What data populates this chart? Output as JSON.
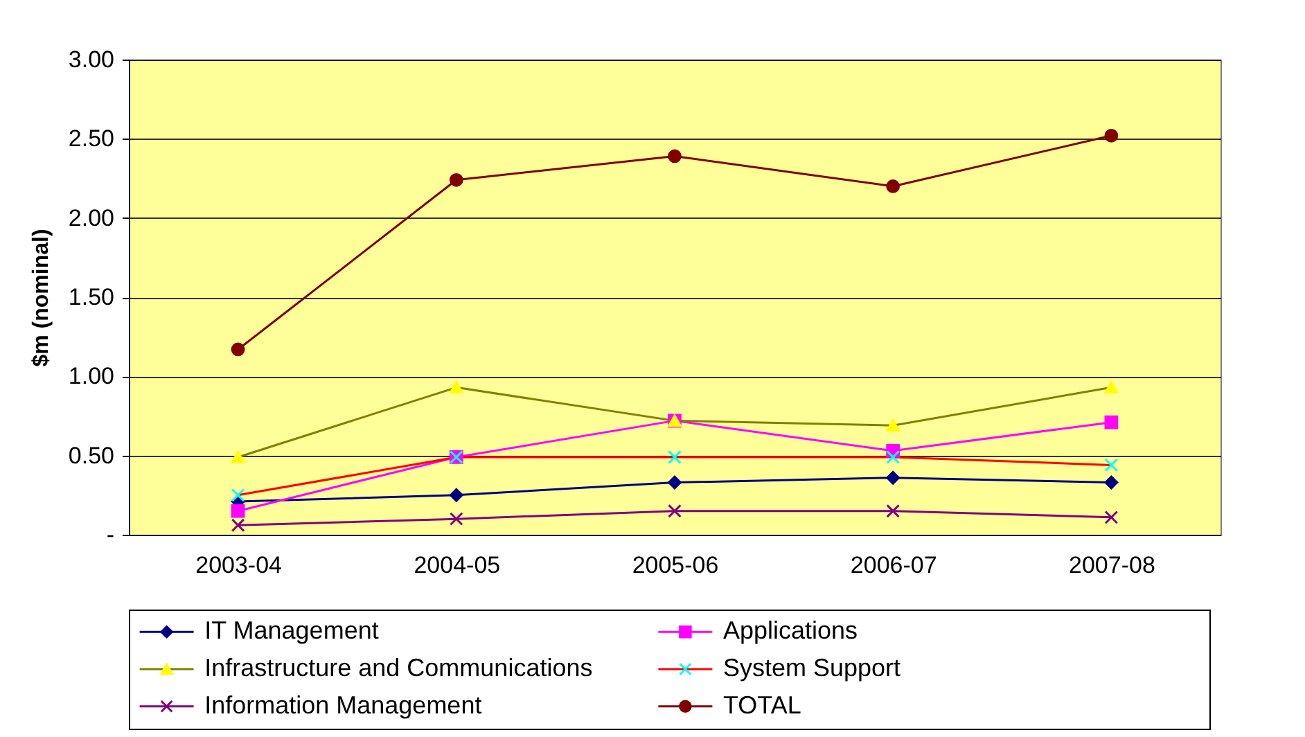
{
  "chart_data": {
    "type": "line",
    "ylabel": "$m (nominal)",
    "categories": [
      "2003-04",
      "2004-05",
      "2005-06",
      "2006-07",
      "2007-08"
    ],
    "series": [
      {
        "name": "IT Management",
        "color": "#000080",
        "marker": "diamond",
        "values": [
          0.21,
          0.25,
          0.33,
          0.36,
          0.33
        ]
      },
      {
        "name": "Applications",
        "color": "#ff00ff",
        "marker": "square",
        "values": [
          0.15,
          0.49,
          0.72,
          0.53,
          0.71
        ]
      },
      {
        "name": "Infrastructure and Communications",
        "color": "#808000",
        "colors": [
          "#ffff00",
          "#ffff00",
          "#ffff00",
          "#ffff00",
          "#ffff00"
        ],
        "marker": "triangle",
        "values": [
          0.49,
          0.93,
          0.72,
          0.69,
          0.93
        ]
      },
      {
        "name": "System Support",
        "color": "#ff0000",
        "colors": [
          "#00ffff",
          "#00ffff",
          "#00ffff",
          "#00ffff",
          "#00ffff"
        ],
        "marker": "cross",
        "values": [
          0.25,
          0.49,
          0.49,
          0.49,
          0.44
        ]
      },
      {
        "name": "Information Management",
        "color": "#800080",
        "marker": "cross",
        "values": [
          0.06,
          0.1,
          0.15,
          0.15,
          0.11
        ]
      },
      {
        "name": "TOTAL",
        "color": "#800000",
        "marker": "circle",
        "values": [
          1.17,
          2.24,
          2.39,
          2.2,
          2.52
        ]
      }
    ],
    "ylim": [
      0,
      3
    ],
    "yticks": [
      {
        "value": 0,
        "label": "-"
      },
      {
        "value": 0.5,
        "label": "0.50"
      },
      {
        "value": 1,
        "label": "1.00"
      },
      {
        "value": 1.5,
        "label": "1.50"
      },
      {
        "value": 2,
        "label": "2.00"
      },
      {
        "value": 2.5,
        "label": "2.50"
      },
      {
        "value": 3,
        "label": "3.00"
      }
    ],
    "grid": "y",
    "legend": "bottom"
  }
}
